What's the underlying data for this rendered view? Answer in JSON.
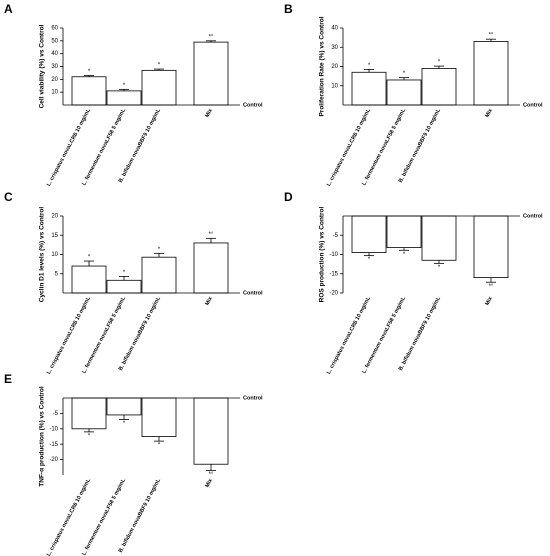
{
  "chart_data": [
    {
      "type": "bar",
      "panel_label": "A",
      "ylabel": "Cell viability (%) vs Control",
      "baseline_label": "Control",
      "categories": [
        "L. crispatus novaLCR6 10 mg/mL",
        "L. fermentum novaLF58 5 mg/mL",
        "B. bifidum novaBBF9 10 mg/mL",
        "Mix"
      ],
      "values": [
        22,
        11,
        27,
        49
      ],
      "errors": [
        1,
        1.2,
        1,
        1
      ],
      "annotations": [
        "*",
        "*",
        "*",
        "*°"
      ],
      "color": "#ffffff",
      "ylim": [
        0,
        60
      ],
      "yticks": [
        10,
        20,
        30,
        40,
        50,
        60
      ]
    },
    {
      "type": "bar",
      "panel_label": "B",
      "ylabel": "Proliferation Rate (%) vs Control",
      "baseline_label": "Control",
      "categories": [
        "L. crispatus novaLCR6 10 mg/mL",
        "L. fermentum novaLF58 5 mg/mL",
        "B. bifidum novaBBF9 10 mg/mL",
        "Mix"
      ],
      "values": [
        17,
        13,
        19,
        33
      ],
      "errors": [
        1.5,
        1.2,
        1.2,
        1.2
      ],
      "annotations": [
        "*",
        "*",
        "*",
        "*°"
      ],
      "color": "#ffffff",
      "ylim": [
        0,
        40
      ],
      "yticks": [
        10,
        20,
        30,
        40
      ]
    },
    {
      "type": "bar",
      "panel_label": "C",
      "ylabel": "Cyclin D1 levels (%) vs Control",
      "baseline_label": "Control",
      "categories": [
        "L. crispatus novaLCR6 10 mg/mL",
        "L. fermentum novaLF58 5 mg/mL",
        "B. bifidum novaBBF9 10 mg/mL",
        "Mix"
      ],
      "values": [
        7,
        3.3,
        9.3,
        13
      ],
      "errors": [
        1.3,
        1,
        1,
        1.2
      ],
      "annotations": [
        "*",
        "*",
        "*",
        "*°"
      ],
      "color": "#ffffff",
      "ylim": [
        0,
        20
      ],
      "yticks": [
        5,
        10,
        15,
        20
      ]
    },
    {
      "type": "bar",
      "panel_label": "D",
      "ylabel": "ROS production (%) vs Control",
      "baseline_label": "Control",
      "categories": [
        "L. crispatus novaLCR6 10 mg/mL",
        "L. fermentum novaLF58 5 mg/mL",
        "B. bifidum novaBBF9 10 mg/mL",
        "Mix"
      ],
      "values": [
        -9.5,
        -8.2,
        -11.5,
        -16
      ],
      "errors": [
        0.8,
        0.7,
        0.8,
        1.2
      ],
      "annotations": [
        "*",
        "*",
        "*",
        "*°"
      ],
      "color": "#ffffff",
      "ylim": [
        -20,
        0
      ],
      "yticks": [
        -5,
        -10,
        -15,
        -20
      ]
    },
    {
      "type": "bar",
      "panel_label": "E",
      "ylabel": "TNF-α production (%) vs Control",
      "baseline_label": "Control",
      "categories": [
        "L. crispatus novaLCR6 10 mg/mL",
        "L. fermentum novaLF58 5 mg/mL",
        "B. bifidum novaBBF9 10 mg/mL",
        "Mix"
      ],
      "values": [
        -10,
        -5.5,
        -12.5,
        -21.5
      ],
      "errors": [
        1,
        1.5,
        1.5,
        2
      ],
      "annotations": [
        "*",
        "*",
        "*",
        "*°"
      ],
      "color": "#ffffff",
      "ylim": [
        -25,
        0
      ],
      "yticks": [
        -5,
        -10,
        -15,
        -20
      ]
    }
  ]
}
